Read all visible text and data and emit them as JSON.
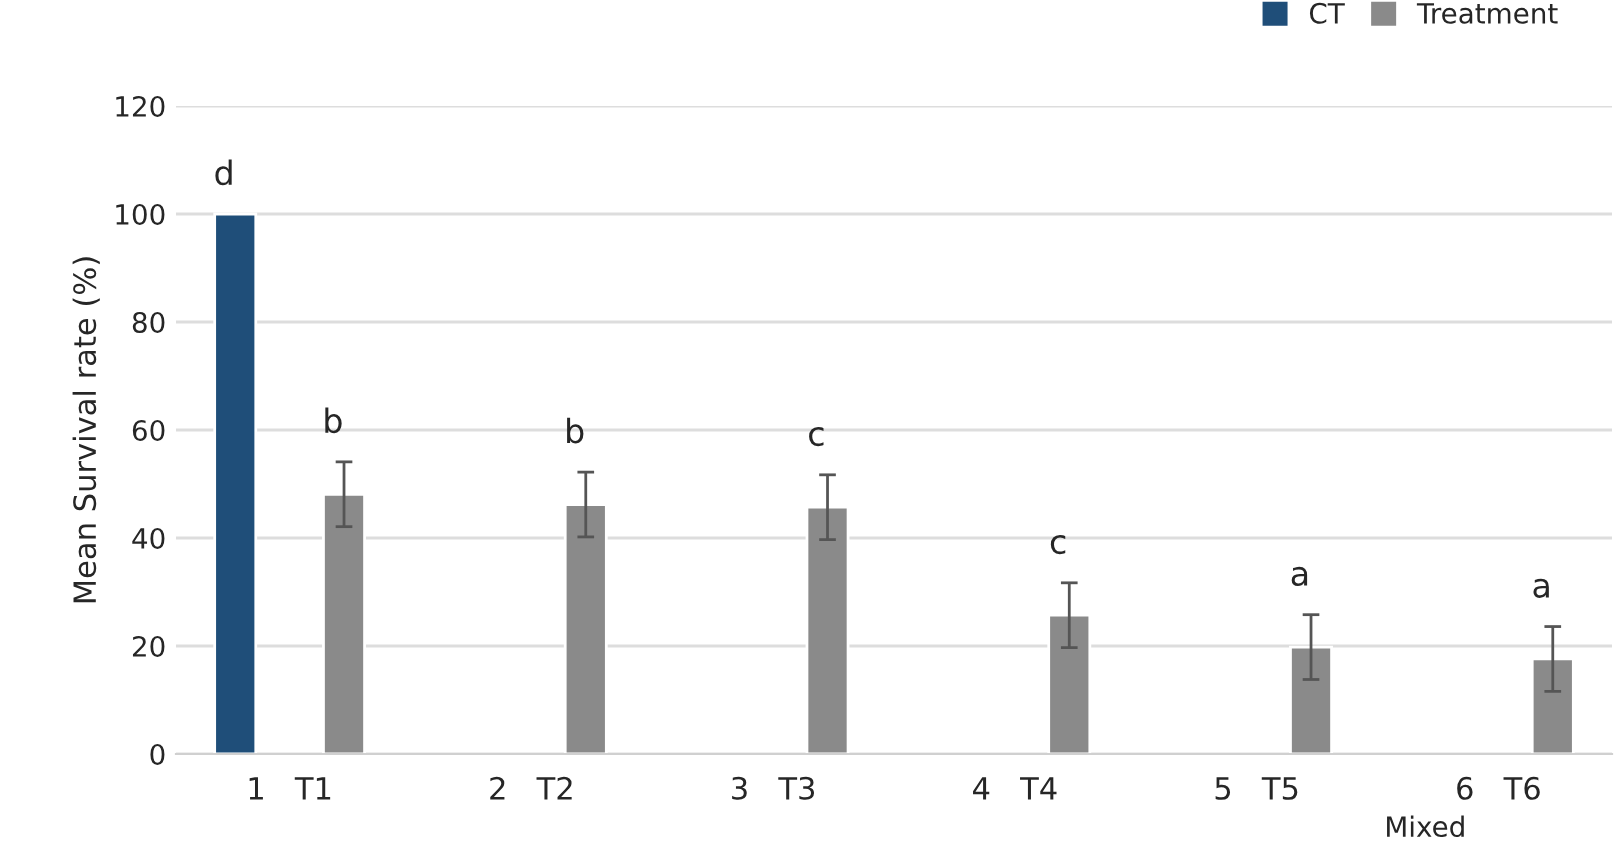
{
  "chart_data": {
    "type": "bar",
    "ylabel": "Mean Survival rate (%)",
    "categories": [
      "1   T1",
      "2   T2",
      "3   T3",
      "4   T4",
      "5   T5",
      "6   T6"
    ],
    "series": [
      {
        "name": "CT",
        "color": "#1f4e79",
        "values": [
          100,
          null,
          null,
          null,
          null,
          null
        ],
        "value_labels": [
          "d",
          null,
          null,
          null,
          null,
          null
        ]
      },
      {
        "name": "Treatment",
        "color": "#8a8a8a",
        "values": [
          48.1,
          46.2,
          45.7,
          25.7,
          19.8,
          17.6
        ],
        "errors": [
          6,
          6,
          6,
          6,
          6,
          6
        ],
        "value_labels": [
          "b",
          "b",
          "c",
          "c",
          "a",
          "a"
        ]
      }
    ],
    "ylim": [
      0,
      120
    ],
    "yticks": [
      0,
      20,
      40,
      60,
      80,
      100,
      120
    ],
    "grid": "y",
    "legend": "top right",
    "annotations": [
      "Mixed"
    ]
  }
}
